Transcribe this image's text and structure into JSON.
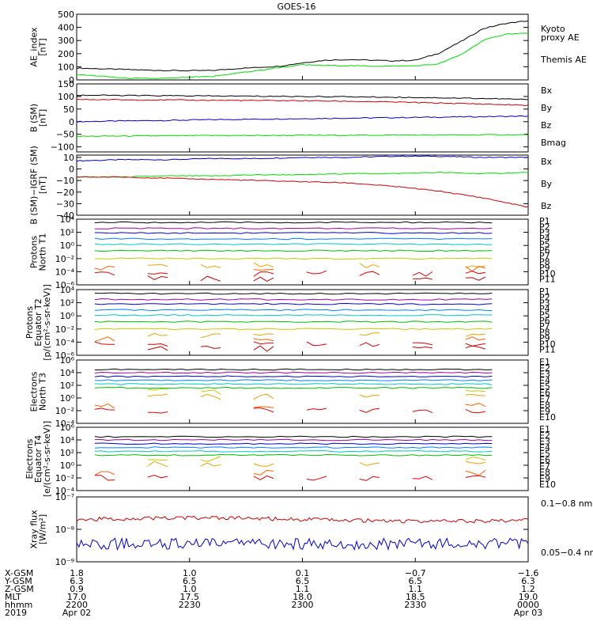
{
  "title": "GOES-16",
  "colors": {
    "black": "#000000",
    "green": "#00dd00",
    "blue": "#0000cc",
    "red": "#cc0000",
    "rainbow": [
      "#000000",
      "#a000a0",
      "#0000d0",
      "#0080ff",
      "#00c8c8",
      "#00c000",
      "#c8c800",
      "#f0a000",
      "#ff6000",
      "#e00000",
      "#c00000"
    ]
  },
  "chart_data": [
    {
      "type": "line",
      "id": "ae",
      "ylabel": "AE_index\n[nT]",
      "ylim": [
        0,
        500
      ],
      "yticks": [
        "0",
        "100",
        "200",
        "300",
        "400",
        "500"
      ],
      "x": [
        0,
        0.05,
        0.1,
        0.15,
        0.2,
        0.25,
        0.3,
        0.35,
        0.4,
        0.45,
        0.5,
        0.55,
        0.6,
        0.65,
        0.7,
        0.75,
        0.8,
        0.85,
        0.9,
        0.95,
        1.0
      ],
      "series": [
        {
          "name": "Themis AE",
          "color": "black",
          "values": [
            90,
            85,
            80,
            75,
            72,
            70,
            72,
            85,
            95,
            105,
            130,
            150,
            155,
            150,
            145,
            150,
            200,
            290,
            390,
            430,
            450
          ]
        },
        {
          "name": "Kyoto proxy AE",
          "color": "green",
          "values": [
            40,
            30,
            15,
            10,
            12,
            20,
            25,
            50,
            70,
            95,
            115,
            110,
            108,
            105,
            105,
            108,
            120,
            190,
            300,
            350,
            355
          ]
        }
      ],
      "legend": [
        {
          "text": "Kyoto",
          "color": "green"
        },
        {
          "text": "proxy AE",
          "color": "green"
        },
        {
          "text": "Themis AE",
          "color": "black"
        }
      ]
    },
    {
      "type": "line",
      "id": "bsm",
      "ylabel": "B (SM)\n[nT]",
      "ylim": [
        -120,
        150
      ],
      "yticks": [
        "−100",
        "−50",
        "0",
        "50",
        "100",
        "150"
      ],
      "ytickvals": [
        -100,
        -50,
        0,
        50,
        100,
        150
      ],
      "x": [
        0,
        0.1,
        0.2,
        0.3,
        0.4,
        0.5,
        0.6,
        0.7,
        0.8,
        0.9,
        1.0
      ],
      "series": [
        {
          "name": "Bx",
          "color": "blue",
          "values": [
            0,
            3,
            5,
            8,
            10,
            12,
            14,
            16,
            18,
            20,
            22
          ]
        },
        {
          "name": "By",
          "color": "green",
          "values": [
            -58,
            -57,
            -56,
            -55,
            -55,
            -54,
            -54,
            -53,
            -53,
            -52,
            -52
          ]
        },
        {
          "name": "Bz",
          "color": "red",
          "values": [
            88,
            87,
            86,
            85,
            84,
            83,
            81,
            78,
            74,
            70,
            65
          ]
        },
        {
          "name": "Bmag",
          "color": "black",
          "values": [
            105,
            104,
            103,
            102,
            101,
            100,
            99,
            97,
            95,
            92,
            88
          ]
        }
      ],
      "legend": [
        {
          "text": "Bx",
          "color": "blue"
        },
        {
          "text": "By",
          "color": "green"
        },
        {
          "text": "Bz",
          "color": "red"
        },
        {
          "text": "Bmag",
          "color": "black"
        }
      ]
    },
    {
      "type": "line",
      "id": "bigrf",
      "ylabel": "B (SM)−IGRF (SM)\n[nT]",
      "ylim": [
        -40,
        12
      ],
      "yticks": [
        "−40",
        "−30",
        "−20",
        "−10",
        "0",
        "10"
      ],
      "ytickvals": [
        -40,
        -30,
        -20,
        -10,
        0,
        10
      ],
      "x": [
        0,
        0.1,
        0.2,
        0.3,
        0.4,
        0.5,
        0.6,
        0.7,
        0.8,
        0.9,
        1.0
      ],
      "series": [
        {
          "name": "Bx",
          "color": "blue",
          "values": [
            7,
            8,
            8,
            9,
            9,
            10,
            10,
            11,
            11,
            10,
            10
          ]
        },
        {
          "name": "By",
          "color": "green",
          "values": [
            -7,
            -7,
            -6,
            -6,
            -5,
            -5,
            -4,
            -4,
            -3,
            -4,
            -3
          ]
        },
        {
          "name": "Bz",
          "color": "red",
          "values": [
            -7,
            -7,
            -8,
            -9,
            -10,
            -11,
            -12,
            -15,
            -19,
            -25,
            -33
          ]
        }
      ],
      "legend": [
        {
          "text": "Bx",
          "color": "blue"
        },
        {
          "text": "By",
          "color": "green"
        },
        {
          "text": "Bz",
          "color": "red"
        }
      ]
    },
    {
      "type": "line",
      "id": "pt1",
      "log": true,
      "ylabel": "Protons\nNorth T1",
      "ylim": [
        -6,
        4
      ],
      "yticks": [
        "10⁻⁶",
        "10⁻⁴",
        "10⁻²",
        "10⁰",
        "10²",
        "10⁴"
      ],
      "ytickvals": [
        -6,
        -4,
        -2,
        0,
        2,
        4
      ],
      "levels": [
        3.5,
        2.6,
        1.9,
        1.0,
        0.2,
        -0.8,
        -2.0,
        -3.0,
        -3.5,
        -4.3,
        -5.0
      ],
      "legend_labels": [
        "P1",
        "P2",
        "P3",
        "P4",
        "P5",
        "P6",
        "P7",
        "P8",
        "P9",
        "P10",
        "P11"
      ]
    },
    {
      "type": "line",
      "id": "pt2",
      "log": true,
      "ylabel": "Protons\nEquator T2\n[p/(cm²-s-sr-keV)]",
      "ylim": [
        -6,
        4
      ],
      "yticks": [
        "10⁻⁶",
        "10⁻⁴",
        "10⁻²",
        "10⁰",
        "10²",
        "10⁴"
      ],
      "ytickvals": [
        -6,
        -4,
        -2,
        0,
        2,
        4
      ],
      "levels": [
        3.4,
        2.5,
        1.8,
        0.9,
        0.1,
        -0.9,
        -2.0,
        -3.0,
        -3.5,
        -4.3,
        -5.0
      ],
      "legend_labels": [
        "P1",
        "P2",
        "P3",
        "P4",
        "P5",
        "P6",
        "P7",
        "P8",
        "P9",
        "P10",
        "P11"
      ]
    },
    {
      "type": "line",
      "id": "et3",
      "log": true,
      "ylabel": "Electrons\nNorth T3",
      "ylim": [
        -4,
        6
      ],
      "yticks": [
        "10⁻⁴",
        "10⁻²",
        "10⁰",
        "10²",
        "10⁴",
        "10⁶"
      ],
      "ytickvals": [
        -4,
        -2,
        0,
        2,
        4,
        6
      ],
      "levels": [
        4.5,
        4.0,
        3.4,
        2.8,
        2.2,
        1.6,
        1.0,
        0.2,
        -1.2,
        -2.0
      ],
      "legend_labels": [
        "E1",
        "E2",
        "E3",
        "E4",
        "E5",
        "E6",
        "E7",
        "E8",
        "E9",
        "E10"
      ]
    },
    {
      "type": "line",
      "id": "et4",
      "log": true,
      "ylabel": "Electrons\nEquator T4\n[e/(cm²-s-sr-keV)]",
      "ylim": [
        -4,
        6
      ],
      "yticks": [
        "10⁻⁴",
        "10⁻²",
        "10⁰",
        "10²",
        "10⁴",
        "10⁶"
      ],
      "ytickvals": [
        -4,
        -2,
        0,
        2,
        4,
        6
      ],
      "levels": [
        4.5,
        4.0,
        3.4,
        2.8,
        2.2,
        1.6,
        1.0,
        0.2,
        -1.2,
        -2.0
      ],
      "legend_labels": [
        "E1",
        "E2",
        "E3",
        "E4",
        "E5",
        "E6",
        "E7",
        "E8",
        "E9",
        "E10"
      ]
    },
    {
      "type": "line",
      "id": "xray",
      "log": true,
      "ylabel": "Xray flux\n[W/m²]",
      "ylim": [
        -9,
        -7
      ],
      "yticks": [
        "10⁻⁹",
        "10⁻⁸",
        "10⁻⁷"
      ],
      "ytickvals": [
        -9,
        -8,
        -7
      ],
      "series": [
        {
          "name": "0.1−0.8 nm",
          "color": "red",
          "level": -7.7
        },
        {
          "name": "0.05−0.4 nm",
          "color": "blue",
          "level": -8.45
        }
      ],
      "legend": [
        {
          "text": "0.1−0.8 nm",
          "color": "red"
        },
        {
          "text": "0.05−0.4 nm",
          "color": "blue"
        }
      ]
    }
  ],
  "xaxis": {
    "row_labels": [
      "X-GSM",
      "Y-GSM",
      "Z-GSM",
      "MLT",
      "hhmm",
      "2019"
    ],
    "columns": [
      [
        "1.8",
        "6.3",
        "0.9",
        "17.0",
        "2200",
        "Apr 02"
      ],
      [
        "1.0",
        "6.5",
        "1.0",
        "17.5",
        "2230",
        ""
      ],
      [
        "0.1",
        "6.5",
        "1.1",
        "18.0",
        "2300",
        ""
      ],
      [
        "−0.7",
        "6.5",
        "1.1",
        "18.5",
        "2330",
        ""
      ],
      [
        "−1.6",
        "6.3",
        "1.2",
        "19.0",
        "0000",
        "Apr 03"
      ]
    ]
  }
}
